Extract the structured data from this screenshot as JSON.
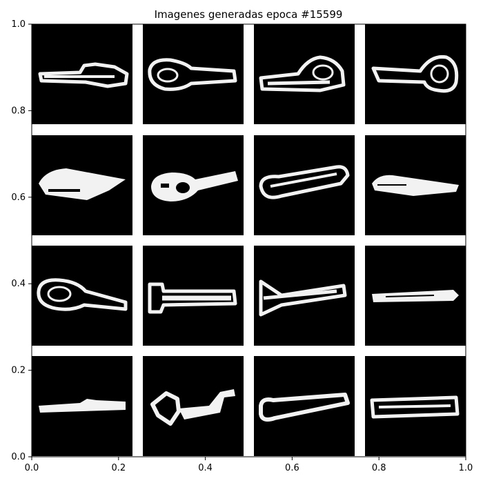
{
  "chart_data": {
    "type": "image-grid",
    "title": "Imagenes generadas epoca #15599",
    "xlim": [
      0.0,
      1.0
    ],
    "ylim": [
      0.0,
      1.0
    ],
    "x_ticks": [
      "0.0",
      "0.2",
      "0.4",
      "0.6",
      "0.8",
      "1.0"
    ],
    "y_ticks": [
      "0.0",
      "0.2",
      "0.4",
      "0.6",
      "0.8",
      "1.0"
    ],
    "grid": {
      "rows": 4,
      "cols": 4
    },
    "background_color": "#000000",
    "stroke_color": "#f2f2f2",
    "panels": [
      {
        "shape": "bar-with-loop-right"
      },
      {
        "shape": "loop-left-bar"
      },
      {
        "shape": "bar-with-loop-center-right"
      },
      {
        "shape": "double-loop-right"
      },
      {
        "shape": "filled-wedge"
      },
      {
        "shape": "blob-left-bar"
      },
      {
        "shape": "loop-left-rising-bar"
      },
      {
        "shape": "flat-blade"
      },
      {
        "shape": "loop-left-tapered"
      },
      {
        "shape": "outlined-bar"
      },
      {
        "shape": "flared-left-bar"
      },
      {
        "shape": "arrow-bar"
      },
      {
        "shape": "thin-bar-bump"
      },
      {
        "shape": "key-loop-left"
      },
      {
        "shape": "loop-left-bar-thin"
      },
      {
        "shape": "double-outlined-bar"
      }
    ]
  }
}
